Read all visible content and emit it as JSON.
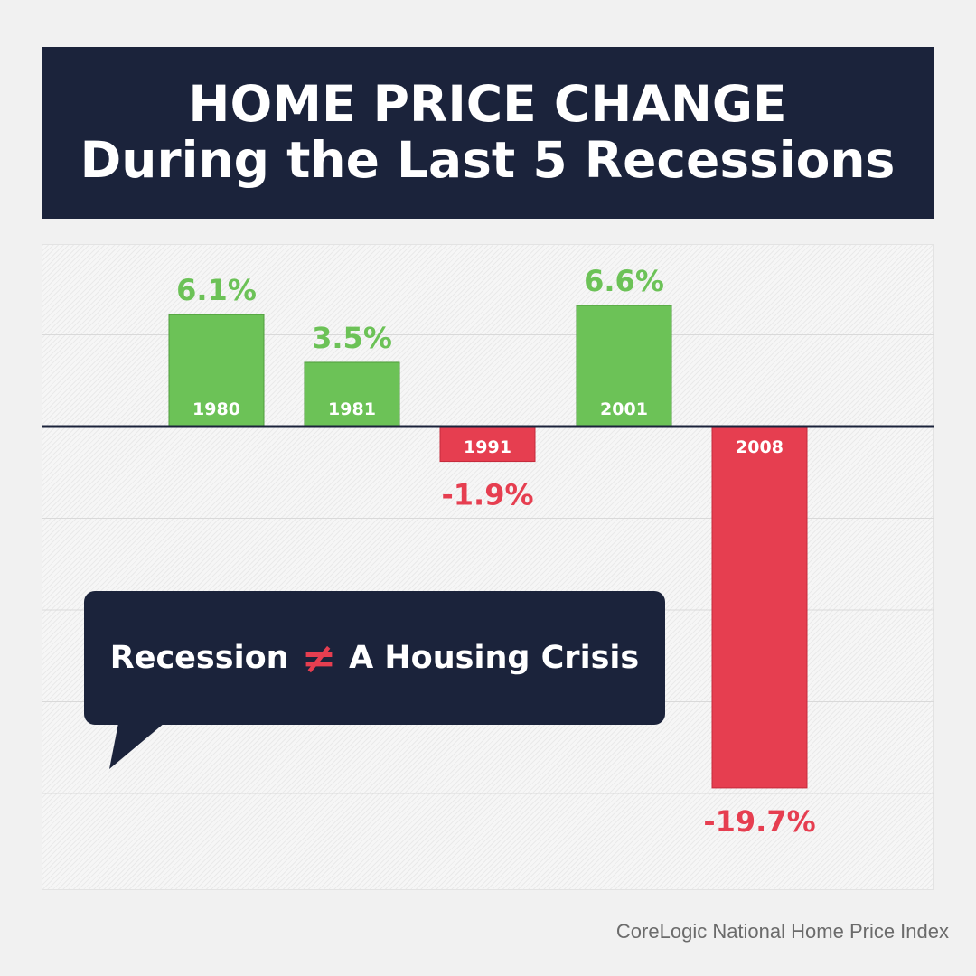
{
  "title": {
    "line1": "HOME PRICE CHANGE",
    "line2": "During the Last 5 Recessions"
  },
  "callout": {
    "left_text": "Recession",
    "symbol": "≠",
    "right_text": "A Housing Crisis"
  },
  "source": "CoreLogic National Home Price Index",
  "colors": {
    "navy": "#1b233b",
    "positive": "#6cc257",
    "negative": "#e63e50"
  },
  "chart_data": {
    "type": "bar",
    "categories": [
      "1980",
      "1981",
      "1991",
      "2001",
      "2008"
    ],
    "values": [
      6.1,
      3.5,
      -1.9,
      6.6,
      -19.7
    ],
    "value_labels": [
      "6.1%",
      "3.5%",
      "-1.9%",
      "6.6%",
      "-19.7%"
    ],
    "title": "HOME PRICE CHANGE During the Last 5 Recessions",
    "xlabel": "",
    "ylabel": "",
    "ylim": [
      -25,
      10
    ],
    "grid": true,
    "legend": "none"
  }
}
